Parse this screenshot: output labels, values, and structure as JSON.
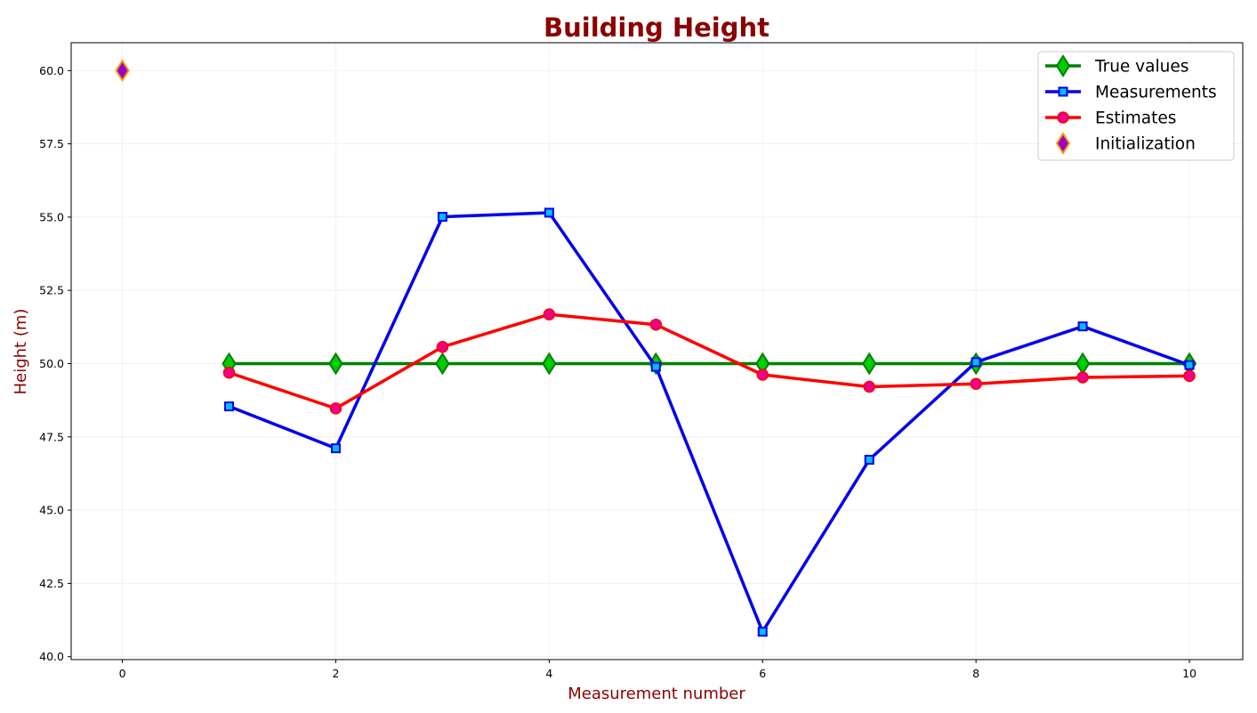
{
  "chart_data": {
    "type": "line",
    "title": "Building Height",
    "xlabel": "Measurement number",
    "ylabel": "Height (m)",
    "xlim": [
      -0.48,
      10.5
    ],
    "ylim": [
      39.9,
      60.95
    ],
    "xticks": [
      0,
      2,
      4,
      6,
      8,
      10
    ],
    "yticks": [
      40.0,
      42.5,
      45.0,
      47.5,
      50.0,
      52.5,
      55.0,
      57.5,
      60.0
    ],
    "grid": true,
    "legend_position": "top-right",
    "colors": {
      "title": "#8b0000",
      "axis_label": "#8b0000",
      "grid": "#eeeeee"
    },
    "series": [
      {
        "name": "True values",
        "color": "#008000",
        "marker": "diamond",
        "marker_fill": "#00cc00",
        "x": [
          1,
          2,
          3,
          4,
          5,
          6,
          7,
          8,
          9,
          10
        ],
        "y": [
          50,
          50,
          50,
          50,
          50,
          50,
          50,
          50,
          50,
          50
        ]
      },
      {
        "name": "Measurements",
        "color": "#0000ee",
        "marker": "square",
        "marker_fill": "#00bfff",
        "x": [
          1,
          2,
          3,
          4,
          5,
          6,
          7,
          8,
          9,
          10
        ],
        "y": [
          48.54,
          47.11,
          55.01,
          55.15,
          49.89,
          40.85,
          46.72,
          50.05,
          51.27,
          49.95
        ]
      },
      {
        "name": "Estimates",
        "color": "#ff0000",
        "marker": "circle",
        "marker_fill": "#ee0088",
        "x": [
          1,
          2,
          3,
          4,
          5,
          6,
          7,
          8,
          9,
          10
        ],
        "y": [
          49.69,
          48.47,
          50.57,
          51.68,
          51.33,
          49.62,
          49.21,
          49.31,
          49.53,
          49.58
        ]
      },
      {
        "name": "Initialization",
        "color": "#ff9900",
        "marker": "diamond",
        "marker_fill": "#9900cc",
        "line": false,
        "x": [
          0
        ],
        "y": [
          60
        ]
      }
    ]
  }
}
